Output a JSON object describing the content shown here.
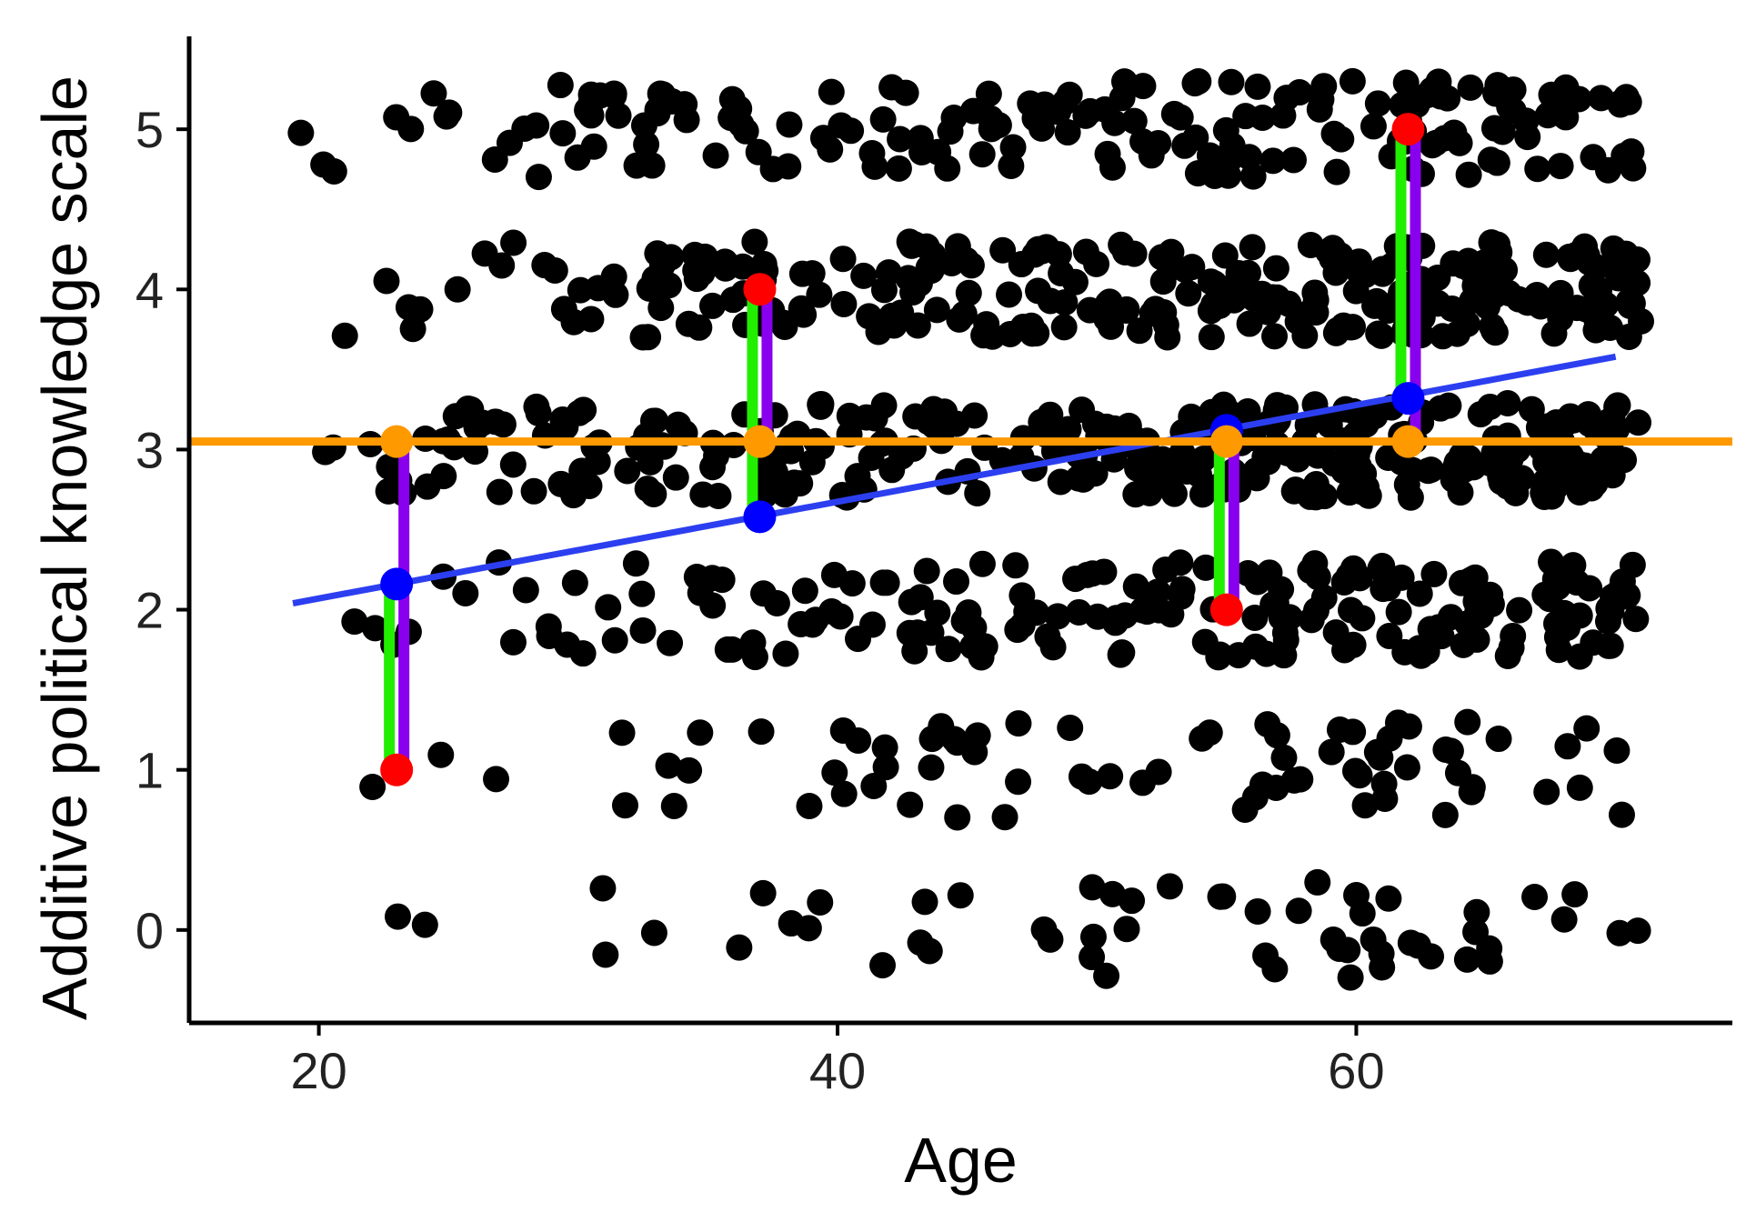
{
  "chart_data": {
    "type": "scatter",
    "title": "",
    "xlabel": "Age",
    "ylabel": "Additive political knowledge scale",
    "xlim": [
      15,
      74.5
    ],
    "ylim": [
      -0.58,
      5.58
    ],
    "xticks": [
      20,
      40,
      60
    ],
    "yticks": [
      0,
      1,
      2,
      3,
      4,
      5
    ],
    "grid": false,
    "legend": "none",
    "colors": {
      "points": "#000000",
      "mean_line": "#ff9900",
      "regression_line": "#2c3ff0",
      "observed": "#ff0000",
      "fitted": "#0000ff",
      "mean_marker": "#ff9900",
      "total_deviation": "#8800ee",
      "residual": "#22ee00"
    },
    "mean_line": {
      "y": 3.05
    },
    "regression_line": {
      "x": [
        19,
        70
      ],
      "y": [
        2.04,
        3.58
      ]
    },
    "highlighted": [
      {
        "x": 23,
        "observed": 1,
        "fitted": 2.16,
        "mean": 3.05
      },
      {
        "x": 37,
        "observed": 4,
        "fitted": 2.58,
        "mean": 3.05
      },
      {
        "x": 55,
        "observed": 2,
        "fitted": 3.12,
        "mean": 3.05
      },
      {
        "x": 62,
        "observed": 5,
        "fitted": 3.32,
        "mean": 3.05
      }
    ],
    "points": {
      "levels": [
        0,
        1,
        2,
        3,
        4,
        5
      ],
      "counts_per_level": [
        55,
        75,
        190,
        330,
        270,
        180
      ],
      "x_range": [
        19,
        71
      ],
      "jitter": 0.3,
      "note_distribution": "density increases with age"
    }
  }
}
